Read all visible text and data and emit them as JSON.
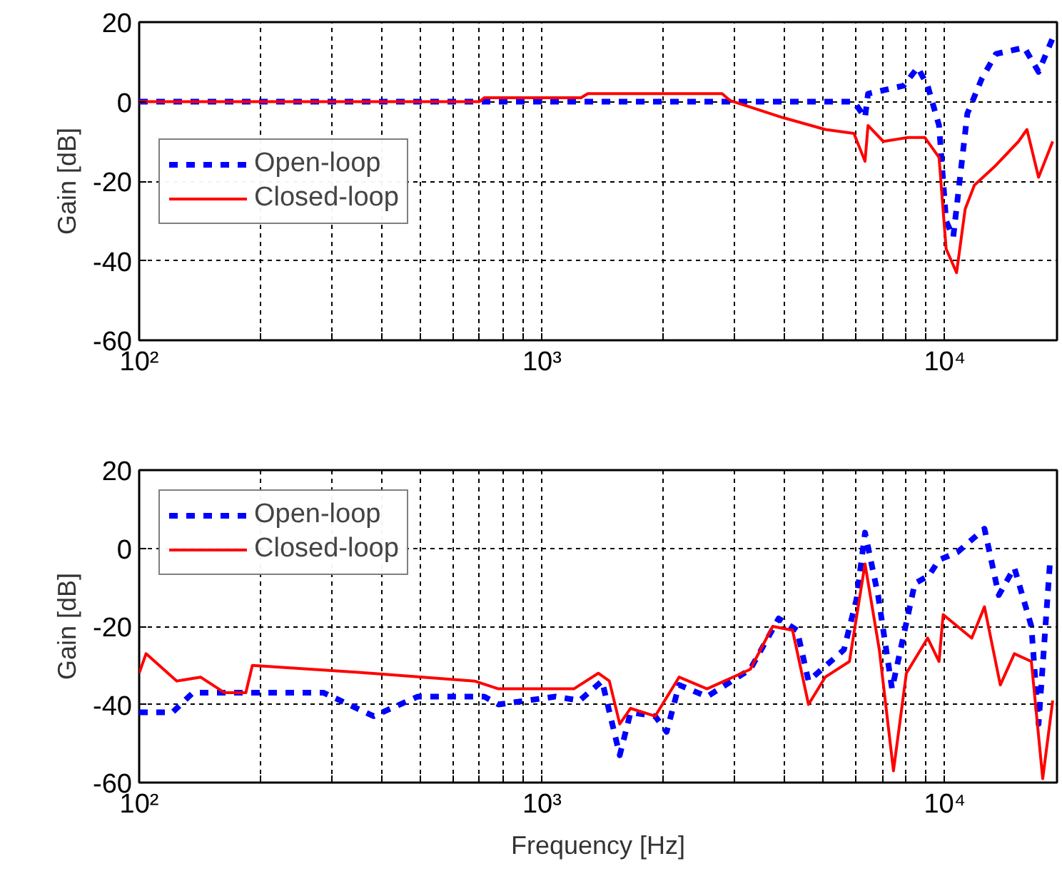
{
  "chart_data": [
    {
      "type": "line",
      "ylabel": "Gain [dB]",
      "xlim": [
        100,
        19000
      ],
      "ylim": [
        -60,
        20
      ],
      "log": "x",
      "grid": true,
      "legend": "left",
      "xticks": [
        {
          "value": 100,
          "label": "10²"
        },
        {
          "value": 200,
          "label": null
        },
        {
          "value": 300,
          "label": null
        },
        {
          "value": 400,
          "label": null
        },
        {
          "value": 500,
          "label": null
        },
        {
          "value": 600,
          "label": null
        },
        {
          "value": 700,
          "label": null
        },
        {
          "value": 800,
          "label": null
        },
        {
          "value": 900,
          "label": null
        },
        {
          "value": 1000,
          "label": "10³"
        },
        {
          "value": 2000,
          "label": null
        },
        {
          "value": 3000,
          "label": null
        },
        {
          "value": 4000,
          "label": null
        },
        {
          "value": 5000,
          "label": null
        },
        {
          "value": 6000,
          "label": null
        },
        {
          "value": 7000,
          "label": null
        },
        {
          "value": 8000,
          "label": null
        },
        {
          "value": 9000,
          "label": null
        },
        {
          "value": 10000,
          "label": "10⁴"
        }
      ],
      "yticks": [
        -60,
        -40,
        -20,
        0,
        20
      ],
      "series": [
        {
          "name": "Open-loop",
          "color": "#0000ff",
          "line_style": "dashed",
          "x": [
            100,
            1000,
            3000,
            5950,
            6340,
            6450,
            7900,
            8570,
            9070,
            9680,
            10080,
            10500,
            11380,
            12350,
            13400,
            15760,
            17100,
            18540
          ],
          "values": [
            0,
            0,
            0,
            0,
            -4,
            2,
            4,
            8.6,
            4,
            -6,
            -30,
            -34,
            -3,
            5.7,
            12,
            13.6,
            7.5,
            16
          ]
        },
        {
          "name": "Closed-loop",
          "color": "#ff0000",
          "line_style": "solid",
          "x": [
            100,
            700,
            720,
            1250,
            1300,
            2570,
            2800,
            2930,
            3960,
            5050,
            5950,
            6340,
            6450,
            7040,
            8120,
            8920,
            9680,
            10080,
            10700,
            11240,
            11850,
            13400,
            15250,
            16000,
            17100,
            18540
          ],
          "values": [
            0,
            0,
            1,
            1,
            2,
            2,
            2,
            0.3,
            -4,
            -7,
            -8,
            -15,
            -6,
            -10,
            -9,
            -9,
            -14,
            -37,
            -43,
            -27,
            -21,
            -16,
            -10,
            -7,
            -19,
            -10
          ]
        }
      ]
    },
    {
      "type": "line",
      "xlabel": "Frequency [Hz]",
      "ylabel": "Gain [dB]",
      "xlim": [
        100,
        19000
      ],
      "ylim": [
        -60,
        20
      ],
      "log": "x",
      "grid": true,
      "legend": "top left",
      "xticks": [
        {
          "value": 100,
          "label": "10²"
        },
        {
          "value": 200,
          "label": null
        },
        {
          "value": 300,
          "label": null
        },
        {
          "value": 400,
          "label": null
        },
        {
          "value": 500,
          "label": null
        },
        {
          "value": 600,
          "label": null
        },
        {
          "value": 700,
          "label": null
        },
        {
          "value": 800,
          "label": null
        },
        {
          "value": 900,
          "label": null
        },
        {
          "value": 1000,
          "label": "10³"
        },
        {
          "value": 2000,
          "label": null
        },
        {
          "value": 3000,
          "label": null
        },
        {
          "value": 4000,
          "label": null
        },
        {
          "value": 5000,
          "label": null
        },
        {
          "value": 6000,
          "label": null
        },
        {
          "value": 7000,
          "label": null
        },
        {
          "value": 8000,
          "label": null
        },
        {
          "value": 9000,
          "label": null
        },
        {
          "value": 10000,
          "label": "10⁴"
        }
      ],
      "yticks": [
        -60,
        -40,
        -20,
        0,
        20
      ],
      "series": [
        {
          "name": "Open-loop",
          "color": "#0000ff",
          "line_style": "dashed",
          "x": [
            100,
            121,
            136,
            188,
            287,
            382,
            491,
            719,
            780,
            1080,
            1240,
            1410,
            1560,
            1660,
            1910,
            2040,
            2190,
            2570,
            3290,
            3870,
            4300,
            4590,
            5620,
            6040,
            6340,
            6830,
            7400,
            8430,
            9140,
            9680,
            10760,
            12550,
            13620,
            14890,
            16410,
            17100,
            18240
          ],
          "values": [
            -42,
            -42,
            -37,
            -37,
            -37,
            -43,
            -38,
            -38,
            -40,
            -38,
            -39,
            -34,
            -53,
            -42,
            -43,
            -47,
            -35,
            -38,
            -31,
            -18,
            -21,
            -34,
            -26,
            -13,
            4,
            -12,
            -36,
            -9,
            -7,
            -3,
            -1,
            5,
            -12,
            -5,
            -20,
            -45,
            -4
          ]
        },
        {
          "name": "Closed-loop",
          "color": "#ff0000",
          "line_style": "solid",
          "x": [
            100,
            104,
            124,
            142,
            163,
            184,
            191,
            376,
            680,
            780,
            995,
            1200,
            1380,
            1470,
            1560,
            1660,
            1910,
            2190,
            2570,
            3290,
            3740,
            4190,
            4590,
            5050,
            5800,
            6340,
            6880,
            7460,
            8030,
            9070,
            9680,
            9910,
            11670,
            12550,
            13740,
            14890,
            16410,
            17510,
            18540
          ],
          "values": [
            -32,
            -27,
            -34,
            -33,
            -37,
            -37,
            -30,
            -32,
            -34,
            -36,
            -36,
            -36,
            -32,
            -34,
            -45,
            -41,
            -43,
            -33,
            -36,
            -31,
            -20,
            -21,
            -40,
            -33,
            -29,
            -4,
            -26,
            -57,
            -32,
            -23,
            -29,
            -17,
            -23,
            -15,
            -35,
            -27,
            -29,
            -59,
            -39
          ]
        }
      ]
    }
  ]
}
